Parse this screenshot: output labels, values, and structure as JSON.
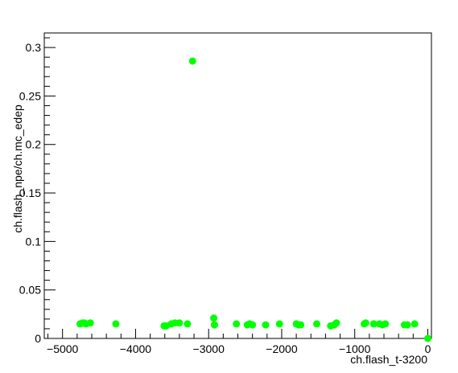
{
  "chart_data": {
    "type": "scatter",
    "title": "",
    "xlabel": "ch.flash_t-3200",
    "ylabel": "ch.flash_npe/ch.mc_edep",
    "xlim": [
      -5250,
      50
    ],
    "ylim": [
      0,
      0.315
    ],
    "x_ticks": [
      -5000,
      -4000,
      -3000,
      -2000,
      -1000,
      0
    ],
    "x_tick_labels": [
      "−5000",
      "−4000",
      "−3000",
      "−2000",
      "−1000",
      "0"
    ],
    "y_ticks": [
      0,
      0.05,
      0.1,
      0.15,
      0.2,
      0.25,
      0.3
    ],
    "y_tick_labels": [
      "0",
      "0.05",
      "0.1",
      "0.15",
      "0.2",
      "0.25",
      "0.3"
    ],
    "grid": false,
    "marker_color": "#00ff00",
    "series": [
      {
        "x": [
          -4760,
          -4730,
          -4700,
          -4680,
          -4620,
          -4270,
          -3610,
          -3580,
          -3510,
          -3460,
          -3400,
          -3290,
          -3220,
          -2930,
          -2920,
          -2620,
          -2470,
          -2440,
          -2400,
          -2220,
          -2030,
          -1800,
          -1770,
          -1740,
          -1520,
          -1330,
          -1280,
          -1250,
          -870,
          -850,
          -740,
          -660,
          -620,
          -580,
          -320,
          -280,
          -180,
          0
        ],
        "y": [
          0.015,
          0.016,
          0.016,
          0.015,
          0.016,
          0.015,
          0.013,
          0.013,
          0.015,
          0.016,
          0.016,
          0.015,
          0.286,
          0.021,
          0.014,
          0.015,
          0.014,
          0.015,
          0.014,
          0.014,
          0.015,
          0.015,
          0.014,
          0.014,
          0.015,
          0.013,
          0.014,
          0.016,
          0.015,
          0.016,
          0.015,
          0.015,
          0.014,
          0.015,
          0.014,
          0.014,
          0.015,
          0.0
        ]
      }
    ]
  }
}
